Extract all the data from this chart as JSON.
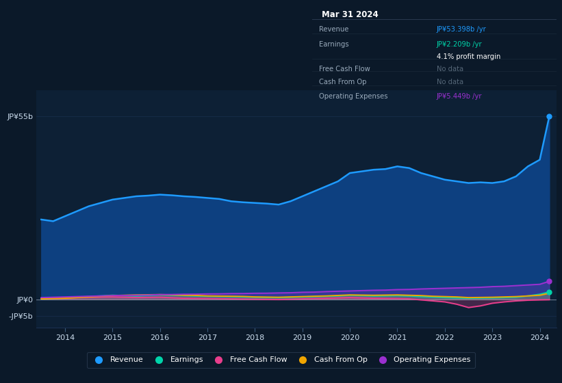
{
  "bg_color": "#0b1929",
  "plot_bg_color": "#0d2035",
  "grid_color": "#1a3050",
  "title": "Mar 31 2024",
  "ylabel_top": "JP¥55b",
  "ylabel_zero": "JP¥0",
  "ylabel_bottom": "-JP¥5b",
  "x_years": [
    2013.5,
    2013.75,
    2014.0,
    2014.25,
    2014.5,
    2014.75,
    2015.0,
    2015.25,
    2015.5,
    2015.75,
    2016.0,
    2016.25,
    2016.5,
    2016.75,
    2017.0,
    2017.25,
    2017.5,
    2017.75,
    2018.0,
    2018.25,
    2018.5,
    2018.75,
    2019.0,
    2019.25,
    2019.5,
    2019.75,
    2020.0,
    2020.25,
    2020.5,
    2020.75,
    2021.0,
    2021.25,
    2021.5,
    2021.75,
    2022.0,
    2022.25,
    2022.5,
    2022.75,
    2023.0,
    2023.25,
    2023.5,
    2023.75,
    2024.0,
    2024.2
  ],
  "revenue": [
    24,
    23.5,
    25,
    26.5,
    28,
    29,
    30,
    30.5,
    31,
    31.2,
    31.5,
    31.3,
    31,
    30.8,
    30.5,
    30.2,
    29.5,
    29.2,
    29,
    28.8,
    28.5,
    29.5,
    31,
    32.5,
    34,
    35.5,
    38,
    38.5,
    39,
    39.2,
    40,
    39.5,
    38,
    37,
    36,
    35.5,
    35,
    35.2,
    35,
    35.5,
    37,
    40,
    42,
    55
  ],
  "earnings": [
    0.3,
    0.35,
    0.5,
    0.65,
    0.8,
    1.0,
    1.2,
    1.1,
    1.0,
    1.15,
    1.3,
    1.2,
    1.1,
    1.0,
    0.9,
    0.85,
    0.8,
    0.7,
    0.6,
    0.55,
    0.5,
    0.6,
    0.7,
    0.8,
    0.9,
    1.0,
    1.2,
    1.1,
    1.0,
    1.05,
    1.1,
    1.0,
    0.8,
    0.65,
    0.5,
    0.4,
    0.3,
    0.35,
    0.4,
    0.5,
    0.6,
    1.0,
    1.5,
    2.2
  ],
  "free_cash_flow": [
    0.2,
    0.3,
    0.4,
    0.5,
    0.6,
    0.65,
    0.7,
    0.6,
    0.5,
    0.55,
    0.6,
    0.45,
    0.3,
    0.25,
    0.2,
    0.15,
    0.1,
    0.05,
    0.0,
    -0.05,
    -0.1,
    0.0,
    0.1,
    0.2,
    0.3,
    0.4,
    0.5,
    0.4,
    0.3,
    0.25,
    0.2,
    0.1,
    -0.2,
    -0.5,
    -0.8,
    -1.5,
    -2.5,
    -2.0,
    -1.2,
    -0.8,
    -0.5,
    -0.3,
    -0.2,
    -0.15
  ],
  "cash_from_op": [
    0.1,
    0.2,
    0.3,
    0.5,
    0.7,
    0.9,
    1.1,
    1.2,
    1.3,
    1.35,
    1.4,
    1.3,
    1.2,
    1.15,
    1.0,
    0.95,
    0.9,
    0.85,
    0.7,
    0.65,
    0.6,
    0.7,
    0.8,
    0.9,
    1.0,
    1.15,
    1.3,
    1.25,
    1.2,
    1.25,
    1.3,
    1.2,
    1.1,
    0.9,
    0.8,
    0.7,
    0.5,
    0.55,
    0.6,
    0.7,
    0.8,
    1.0,
    1.2,
    1.8
  ],
  "operating_expenses": [
    0.5,
    0.6,
    0.7,
    0.8,
    0.9,
    1.0,
    1.1,
    1.15,
    1.2,
    1.25,
    1.4,
    1.42,
    1.5,
    1.52,
    1.6,
    1.62,
    1.7,
    1.72,
    1.8,
    1.82,
    1.9,
    1.95,
    2.1,
    2.15,
    2.3,
    2.4,
    2.5,
    2.6,
    2.7,
    2.75,
    2.9,
    2.95,
    3.1,
    3.2,
    3.3,
    3.4,
    3.5,
    3.6,
    3.8,
    3.9,
    4.1,
    4.3,
    4.5,
    5.4
  ],
  "colors": {
    "revenue": "#1e9bff",
    "earnings": "#00d4aa",
    "free_cash_flow": "#e83e8c",
    "cash_from_op": "#f0a500",
    "operating_expenses": "#9b30d0"
  },
  "revenue_fill_color": "#0d4080",
  "legend_items": [
    "Revenue",
    "Earnings",
    "Free Cash Flow",
    "Cash From Op",
    "Operating Expenses"
  ],
  "xlim": [
    2013.4,
    2024.35
  ],
  "ylim": [
    -8.5,
    63
  ],
  "ytick_vals": [
    55,
    0,
    -5
  ],
  "year_ticks": [
    2014,
    2015,
    2016,
    2017,
    2018,
    2019,
    2020,
    2021,
    2022,
    2023,
    2024
  ]
}
